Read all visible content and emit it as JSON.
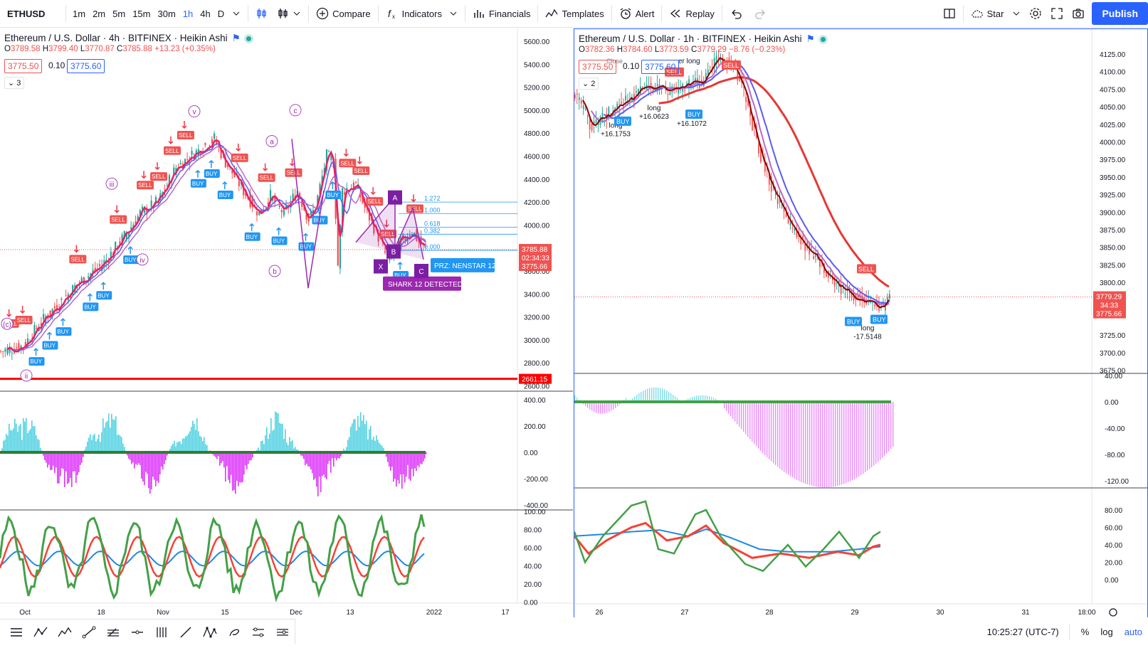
{
  "toolbar": {
    "symbol": "ETHUSD",
    "intervals": [
      "1m",
      "2m",
      "5m",
      "15m",
      "30m",
      "1h",
      "4h",
      "D"
    ],
    "active_interval": "1h",
    "compare": "Compare",
    "indicators": "Indicators",
    "financials": "Financials",
    "templates": "Templates",
    "alert": "Alert",
    "replay": "Replay",
    "star": "Star",
    "publish": "Publish"
  },
  "left": {
    "title": "Ethereum / U.S. Dollar · 4h · BITFINEX · Heikin Ashi",
    "ohlc": {
      "o": "3789.58",
      "h": "3799.40",
      "l": "3770.87",
      "c": "3785.88",
      "chg": "+13.23 (+0.35%)"
    },
    "sell_price": "3775.50",
    "spread": "0.10",
    "buy_price": "3775.60",
    "collapse": "3",
    "price_axis": [
      "5600.00",
      "5400.00",
      "5200.00",
      "5000.00",
      "4800.00",
      "4600.00",
      "4400.00",
      "4200.00",
      "4000.00",
      "3800.00",
      "3600.00",
      "3400.00",
      "3200.00",
      "3000.00",
      "2800.00",
      "2600.00"
    ],
    "last_price": "3785.88",
    "countdown": "02:34:33",
    "bid_price": "3775.66",
    "support_price": "2661.15",
    "osc1_axis": [
      "400.00",
      "200.00",
      "0.00",
      "-200.00",
      "-400.00"
    ],
    "osc2_axis": [
      "100.00",
      "80.00",
      "60.00",
      "40.00",
      "20.00",
      "0.00"
    ],
    "time_axis": [
      "Oct",
      "18",
      "Nov",
      "15",
      "Dec",
      "13",
      "2022",
      "17"
    ],
    "wave_labels": [
      "v",
      "c",
      "iii",
      "a",
      "iv",
      "b",
      "ii",
      "(c)"
    ],
    "harmonic_labels": [
      "PRZ: NENSTAR 12",
      "SHARK 12 DETECTED",
      "X",
      "B",
      "C",
      "A"
    ],
    "fib_labels": [
      "1.272",
      "1.000",
      "0.618",
      "0.382",
      "0.000"
    ]
  },
  "right": {
    "title": "Ethereum / U.S. Dollar · 1h · BITFINEX · Heikin Ashi",
    "ohlc": {
      "o": "3782.36",
      "h": "3784.60",
      "l": "3773.59",
      "c": "3779.29",
      "chg": "−8.76 (−0.23%)"
    },
    "sell_price": "3775.50",
    "spread": "0.10",
    "buy_price": "3775.60",
    "collapse": "2",
    "price_axis": [
      "4125.00",
      "4100.00",
      "4075.00",
      "4050.00",
      "4025.00",
      "4000.00",
      "3975.00",
      "3950.00",
      "3925.00",
      "3900.00",
      "3875.00",
      "3850.00",
      "3825.00",
      "3800.00",
      "3725.00",
      "3700.00",
      "3675.00"
    ],
    "last_price": "3779.29",
    "countdown": "34:33",
    "bid_price": "3775.66",
    "osc1_axis": [
      "40.00",
      "0.00",
      "-40.00",
      "-80.00",
      "-120.00"
    ],
    "osc2_axis": [
      "80.00",
      "60.00",
      "40.00",
      "20.00",
      "0.00"
    ],
    "time_axis": [
      "26",
      "27",
      "28",
      "29",
      "30",
      "31",
      "18:00"
    ],
    "trade_labels": [
      {
        "side": "long",
        "pnl": "+16.1753"
      },
      {
        "side": "long",
        "pnl": "+16.0623"
      },
      {
        "side": "long",
        "pnl": "+16.1072"
      },
      {
        "side": "long",
        "pnl": "-17.5148"
      }
    ],
    "annot": "Close",
    "annot2": "er long"
  },
  "bottom": {
    "time": "10:25:27 (UTC-7)",
    "percent": "%",
    "log": "log",
    "auto": "auto"
  },
  "colors": {
    "accent": "#2962ff",
    "sell": "#ef5350",
    "buy": "#2196f3",
    "ma_red": "#e53935",
    "ma_blue": "#5b5bf0",
    "ma_purple": "#ba68c8",
    "osc_cyan": "#26c6da",
    "osc_magenta": "#d500f9",
    "stoch_green": "#43a047",
    "stoch_red": "#f44336",
    "stoch_blue": "#1e88e5"
  }
}
